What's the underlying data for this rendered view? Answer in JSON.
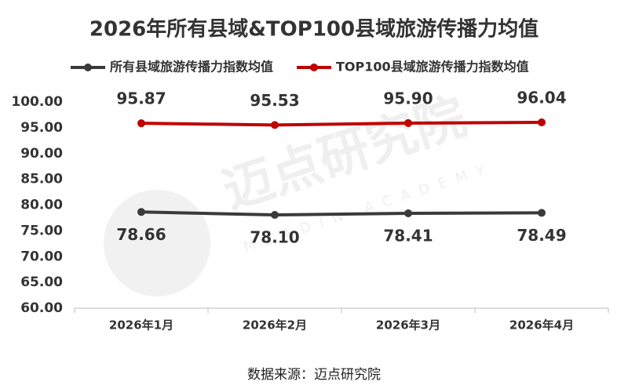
{
  "chart_data": {
    "type": "line",
    "title": "2026年所有县域&TOP100县域旅游传播力均值",
    "categories": [
      "2026年1月",
      "2026年2月",
      "2026年3月",
      "2026年4月"
    ],
    "series": [
      {
        "name": "所有县域旅游传播力指数均值",
        "color": "#3a3a3a",
        "values": [
          78.66,
          78.1,
          78.41,
          78.49
        ],
        "value_labels": [
          "78.66",
          "78.10",
          "78.41",
          "78.49"
        ]
      },
      {
        "name": "TOP100县域旅游传播力指数均值",
        "color": "#c00000",
        "values": [
          95.87,
          95.53,
          95.9,
          96.04
        ],
        "value_labels": [
          "95.87",
          "95.53",
          "95.90",
          "96.04"
        ]
      }
    ],
    "ylim": [
      60,
      100
    ],
    "yticks": [
      {
        "value": 60,
        "label": "60.00"
      },
      {
        "value": 65,
        "label": "65.00"
      },
      {
        "value": 70,
        "label": "70.00"
      },
      {
        "value": 75,
        "label": "75.00"
      },
      {
        "value": 80,
        "label": "80.00"
      },
      {
        "value": 85,
        "label": "85.00"
      },
      {
        "value": 90,
        "label": "90.00"
      },
      {
        "value": 95,
        "label": "95.00"
      },
      {
        "value": 100,
        "label": "100.00"
      }
    ],
    "grid": false,
    "legend": "top",
    "source": "数据来源：迈点研究院",
    "watermark": "迈点研究院",
    "watermark_sub": "MEADIN ACADEMY"
  }
}
